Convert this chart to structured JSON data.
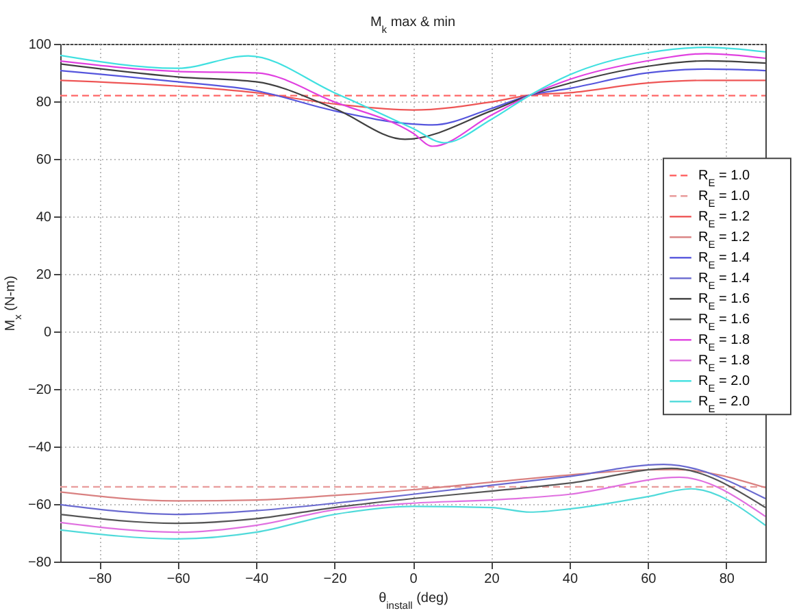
{
  "chart_data": {
    "type": "line",
    "title": "M$_{k}$ max & min",
    "xlabel": "θ$_{install}$ (deg)",
    "ylabel": "M$_{x}$ (N-m)",
    "xlim": [
      -90,
      90
    ],
    "xticks": [
      -80,
      -60,
      -40,
      -20,
      0,
      20,
      40,
      60,
      80
    ],
    "ylim": [
      -80,
      100
    ],
    "yticks": [
      -80,
      -60,
      -40,
      -20,
      0,
      20,
      40,
      60,
      80,
      100
    ],
    "grid": true,
    "legend": "right",
    "line_style": "solid",
    "x": [
      -90,
      -60,
      -40,
      -20,
      0,
      20,
      30,
      40,
      60,
      75,
      90
    ],
    "series": [
      {
        "name": "R$_{E}$ = 1.0",
        "color": "#ff6666",
        "line_style": "dashed",
        "x": [
          -90,
          90
        ],
        "values": [
          82,
          82
        ]
      },
      {
        "name": "R$_{E}$ = 1.0",
        "color": "#e89a9a",
        "line_style": "dashed",
        "x": [
          -90,
          90
        ],
        "values": [
          -54,
          -54
        ]
      },
      {
        "name": "R$_{E}$ = 1.2",
        "color": "#ee5555",
        "values": [
          87.3,
          85.3,
          83,
          79.1,
          77,
          79.8,
          82.2,
          83,
          86.4,
          87.3,
          87.3
        ]
      },
      {
        "name": "R$_{E}$ = 1.2",
        "color": "#d98080",
        "x": [
          -90,
          -60,
          -40,
          -20,
          0,
          20,
          40,
          60,
          67,
          90
        ],
        "values": [
          -55.8,
          -58.9,
          -58.6,
          -57,
          -55,
          -52.4,
          -49.9,
          -48.1,
          -48,
          -54.3
        ]
      },
      {
        "name": "R$_{E}$ = 1.4",
        "color": "#5555dd",
        "x": [
          -90,
          -60,
          -40,
          -20,
          0,
          5,
          20,
          30,
          40,
          60,
          75,
          90
        ],
        "values": [
          90.7,
          86.8,
          83.7,
          76.7,
          72.1,
          71.8,
          77.5,
          82.2,
          84.5,
          89.9,
          91.2,
          90.7
        ]
      },
      {
        "name": "R$_{E}$ = 1.4",
        "color": "#6a6ad0",
        "x": [
          -90,
          -60,
          -40,
          -20,
          0,
          20,
          40,
          64,
          90
        ],
        "values": [
          -60.2,
          -63.6,
          -62.3,
          -59.7,
          -56.6,
          -53.5,
          -50.4,
          -46.2,
          -58.1
        ]
      },
      {
        "name": "R$_{E}$ = 1.6",
        "color": "#404040",
        "x": [
          -90,
          -60,
          -40,
          -20,
          -2,
          20,
          30,
          40,
          60,
          75,
          90
        ],
        "values": [
          93,
          88.5,
          86.8,
          77.5,
          66.8,
          76.7,
          82.2,
          86.3,
          92.2,
          94.1,
          93.3
        ]
      },
      {
        "name": "R$_{E}$ = 1.6",
        "color": "#555555",
        "x": [
          -90,
          -60,
          -40,
          -20,
          0,
          20,
          40,
          66,
          90
        ],
        "values": [
          -63.6,
          -66.7,
          -65.1,
          -61.2,
          -58.1,
          -55.5,
          -52.7,
          -47.6,
          -61.2
        ]
      },
      {
        "name": "R$_{E}$ = 1.8",
        "color": "#e040e0",
        "x": [
          -90,
          -60,
          -40,
          -20,
          0,
          5,
          20,
          30,
          40,
          60,
          75,
          90
        ],
        "values": [
          94,
          90.4,
          89.9,
          79.8,
          69,
          64.4,
          75.2,
          82.2,
          87.6,
          94.1,
          96.6,
          95
        ]
      },
      {
        "name": "R$_{E}$ = 1.8",
        "color": "#e070e0",
        "x": [
          -90,
          -60,
          -40,
          -20,
          0,
          20,
          40,
          68,
          90
        ],
        "values": [
          -66.4,
          -69.8,
          -67.4,
          -62,
          -59.7,
          -58.6,
          -56.6,
          -50.7,
          -64.3
        ]
      },
      {
        "name": "R$_{E}$ = 2.0",
        "color": "#40e0e0",
        "x": [
          -90,
          -60,
          -42,
          -20,
          0,
          8,
          20,
          30,
          40,
          60,
          75,
          90
        ],
        "values": [
          96,
          91.5,
          95.8,
          83,
          70.6,
          65.6,
          73.7,
          82.2,
          89.2,
          96.9,
          98.8,
          97.2
        ]
      },
      {
        "name": "R$_{E}$ = 2.0",
        "color": "#50dada",
        "x": [
          -90,
          -60,
          -40,
          -20,
          0,
          20,
          30,
          40,
          60,
          71,
          90
        ],
        "values": [
          -69,
          -72.1,
          -69.8,
          -63.6,
          -60.8,
          -61.2,
          -62.8,
          -61.7,
          -57.4,
          -54.7,
          -67.4
        ]
      }
    ]
  }
}
